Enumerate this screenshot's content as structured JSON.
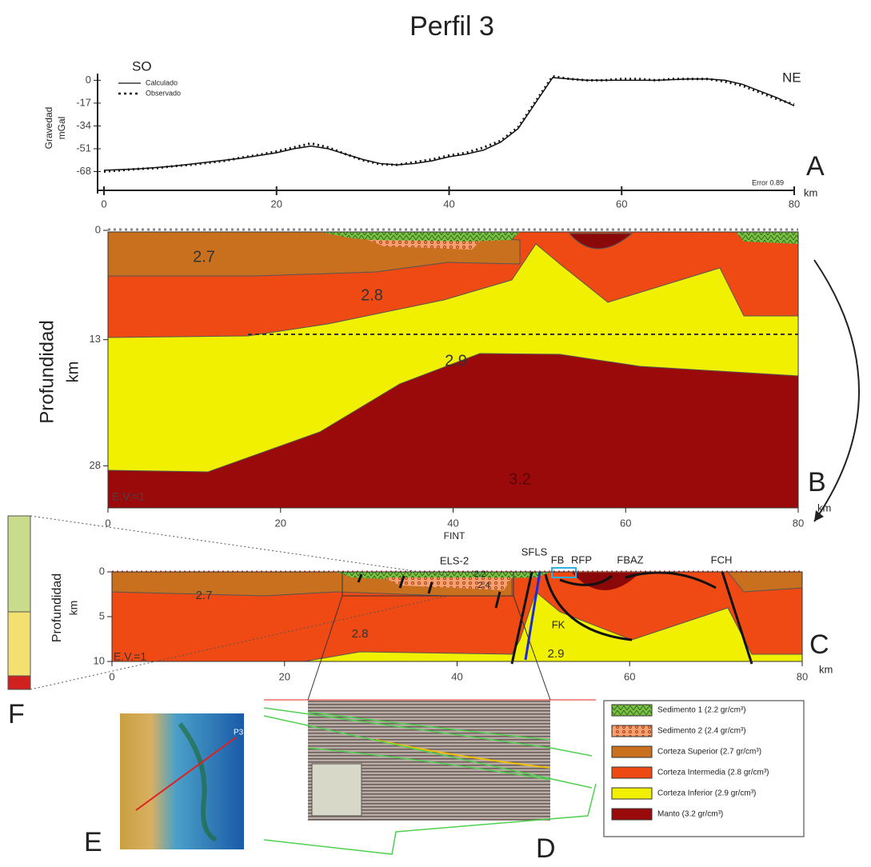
{
  "title": "Perfil 3",
  "chart_data": [
    {
      "type": "line",
      "panel": "A",
      "direction_left": "SO",
      "direction_right": "NE",
      "y_label": [
        "Gravedad",
        "mGal"
      ],
      "x_unit": "km",
      "error_note": "Error 0.89",
      "x": [
        0,
        2,
        4,
        6,
        8,
        10,
        12,
        14,
        16,
        18,
        20,
        22,
        24,
        26,
        28,
        30,
        32,
        34,
        36,
        38,
        40,
        42,
        44,
        46,
        48,
        50,
        52,
        54,
        56,
        58,
        60,
        62,
        64,
        66,
        68,
        70,
        72,
        74,
        76,
        78,
        80
      ],
      "series": [
        {
          "name": "Calculado",
          "color": "#111111",
          "style": "solid",
          "values": [
            -67,
            -66.5,
            -66,
            -65,
            -64,
            -62.5,
            -61,
            -59.5,
            -58,
            -56,
            -54,
            -51,
            -49,
            -51,
            -55,
            -59,
            -62,
            -63,
            -62,
            -60,
            -57,
            -55,
            -52,
            -46,
            -36,
            -17,
            2,
            1,
            0,
            0,
            0,
            0,
            0,
            0.5,
            1,
            1,
            0,
            -3,
            -8,
            -13,
            -19
          ]
        },
        {
          "name": "Observado",
          "color": "#111111",
          "style": "dotted",
          "values": [
            -68,
            -67,
            -66,
            -65.5,
            -64,
            -63,
            -61.5,
            -60,
            -57.5,
            -55.5,
            -53,
            -50,
            -47,
            -50,
            -55,
            -59.5,
            -62.5,
            -63,
            -61,
            -59,
            -56,
            -54,
            -50,
            -45,
            -35,
            -16,
            3,
            1,
            0,
            0,
            1,
            1,
            0,
            1,
            1,
            1,
            -1,
            -4,
            -9,
            -14,
            -18
          ]
        }
      ],
      "xlim": [
        0,
        80
      ],
      "ylim": [
        -82,
        5
      ],
      "xticks": [
        0,
        20,
        40,
        60,
        80
      ],
      "yticks": [
        0,
        -17,
        -34,
        -51,
        -68
      ]
    },
    {
      "type": "section",
      "panel": "B",
      "y_label": [
        "Profundidad",
        "km"
      ],
      "x_unit": "km",
      "note": "E.V.=1",
      "fault_label": "FINT",
      "layer_labels": [
        "2.7",
        "2.8",
        "2.9",
        "3.2"
      ],
      "xlim": [
        0,
        80
      ],
      "ylim": [
        0,
        33
      ],
      "xticks": [
        0,
        20,
        40,
        60,
        80
      ],
      "yticks": [
        0,
        13,
        28
      ]
    },
    {
      "type": "section",
      "panel": "C",
      "y_label": [
        "Profundidad",
        "km"
      ],
      "x_unit": "km",
      "note": "E.V.=1",
      "layer_labels": [
        "2.7",
        "2.8",
        "2.9",
        "2.4",
        "2.2"
      ],
      "fault_labels": [
        "ELS-2",
        "SFLS",
        "FB",
        "RFP",
        "FBAZ",
        "FCH",
        "FK"
      ],
      "xlim": [
        0,
        80
      ],
      "ylim": [
        0,
        10
      ],
      "xticks": [
        0,
        20,
        40,
        60,
        80
      ],
      "yticks": [
        0,
        5,
        10
      ]
    }
  ],
  "panels": {
    "D": "D",
    "E": "E",
    "F": "F"
  },
  "map_label": "P3",
  "legend": [
    {
      "label": "Sedimento 1 (2.2 gr/cm³)",
      "fill": "url(#sed1)"
    },
    {
      "label": "Sedimento 2 (2.4 gr/cm³)",
      "fill": "url(#sed2)"
    },
    {
      "label": "Corteza Superior (2.7 gr/cm³)",
      "fill": "#c8701e"
    },
    {
      "label": "Corteza Intermedia (2.8 gr/cm³)",
      "fill": "#f04a14"
    },
    {
      "label": "Corteza Inferior (2.9 gr/cm³)",
      "fill": "#f0f000"
    },
    {
      "label": "Manto (3.2 gr/cm³)",
      "fill": "#9a0a0a"
    }
  ]
}
